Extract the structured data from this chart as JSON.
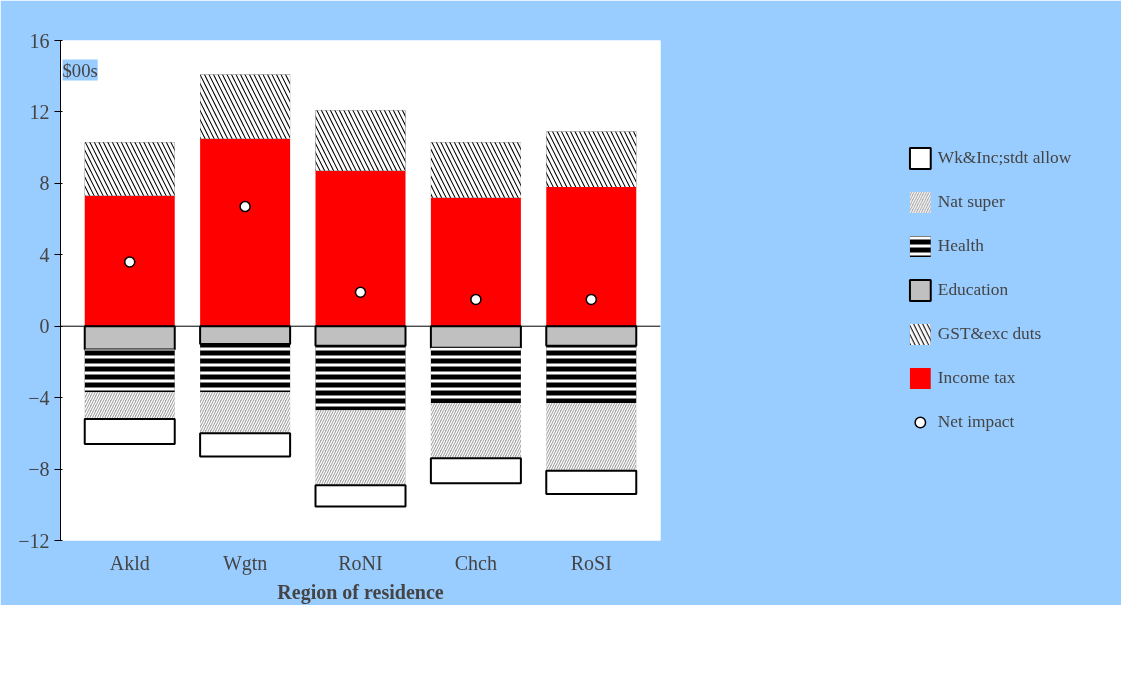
{
  "chart_data": {
    "type": "bar",
    "stacked": true,
    "xlabel": "Region of residence",
    "ylabel": "$00s",
    "categories": [
      "Akld",
      "Wgtn",
      "RoNI",
      "Chch",
      "RoSI"
    ],
    "series": [
      {
        "name": "Income tax",
        "color": "#ff0000",
        "values": [
          7.3,
          10.5,
          8.7,
          7.2,
          7.8
        ]
      },
      {
        "name": "GST&exc duts",
        "color": "#000000",
        "values": [
          3.0,
          3.6,
          3.4,
          3.1,
          3.1
        ]
      },
      {
        "name": "Education",
        "color": "#c0c0c0",
        "values": [
          -1.3,
          -1.0,
          -1.1,
          -1.2,
          -1.1
        ]
      },
      {
        "name": "Health",
        "color": "#000000",
        "values": [
          -2.4,
          -2.7,
          -3.6,
          -3.1,
          -3.2
        ]
      },
      {
        "name": "Nat super",
        "color": "#a6a6a6",
        "values": [
          -1.5,
          -2.3,
          -4.2,
          -3.1,
          -3.8
        ]
      },
      {
        "name": "Wk&Inc;stdt allow",
        "color": "#ffffff",
        "values": [
          -1.4,
          -1.3,
          -1.2,
          -1.4,
          -1.3
        ]
      },
      {
        "name": "Net impact",
        "type": "scatter",
        "color": "#ffffff",
        "values": [
          3.6,
          6.7,
          1.9,
          1.5,
          1.5
        ]
      }
    ],
    "ref_lines": [
      {
        "axis": "y",
        "value": 0,
        "color": "#000000"
      }
    ],
    "ylim": [
      -12,
      16
    ],
    "yticks": [
      -12,
      -8,
      -4,
      0,
      4,
      8,
      12,
      16
    ],
    "marker": "circle",
    "legend": "right",
    "grid": false
  }
}
